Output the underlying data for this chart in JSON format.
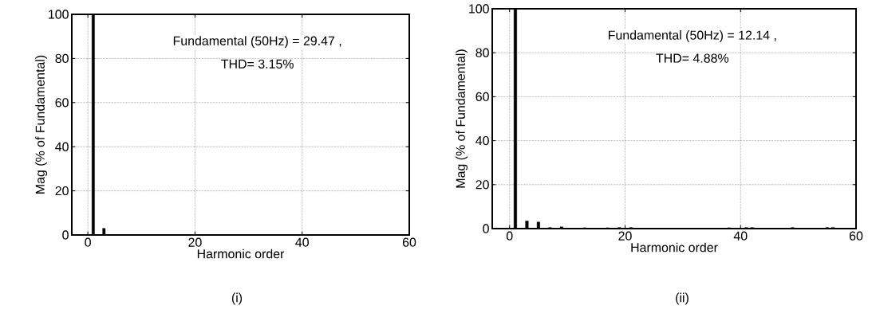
{
  "chart_data": [
    {
      "type": "bar",
      "xlabel": "Harmonic order",
      "ylabel": "Mag (% of Fundamental)",
      "x": [
        1,
        3
      ],
      "values": [
        100,
        3
      ],
      "color": "#000000",
      "xlim": [
        -3,
        60
      ],
      "ylim": [
        0,
        100
      ],
      "xticks": [
        0,
        20,
        40,
        60
      ],
      "yticks": [
        0,
        20,
        40,
        60,
        80,
        100
      ],
      "grid": true,
      "annotations": [
        "Fundamental (50Hz) = 29.47 ,",
        "THD= 3.15%",
        "(i)"
      ]
    },
    {
      "type": "bar",
      "xlabel": "Harmonic order",
      "ylabel": "Mag (% of Fundamental)",
      "x": [
        1,
        3,
        5,
        7,
        9,
        13,
        17,
        19,
        21,
        38,
        41,
        42,
        49,
        55,
        56
      ],
      "values": [
        100,
        3.5,
        3,
        0.5,
        0.8,
        0.4,
        0.4,
        0.5,
        0.5,
        0.4,
        0.5,
        0.5,
        0.5,
        0.5,
        0.5
      ],
      "color": "#000000",
      "xlim": [
        -3,
        60
      ],
      "ylim": [
        0,
        100
      ],
      "xticks": [
        0,
        20,
        40,
        60
      ],
      "yticks": [
        0,
        20,
        40,
        60,
        80,
        100
      ],
      "grid": true,
      "annotations": [
        "Fundamental (50Hz) = 12.14 ,",
        "THD= 4.88%",
        "(ii)"
      ]
    }
  ]
}
